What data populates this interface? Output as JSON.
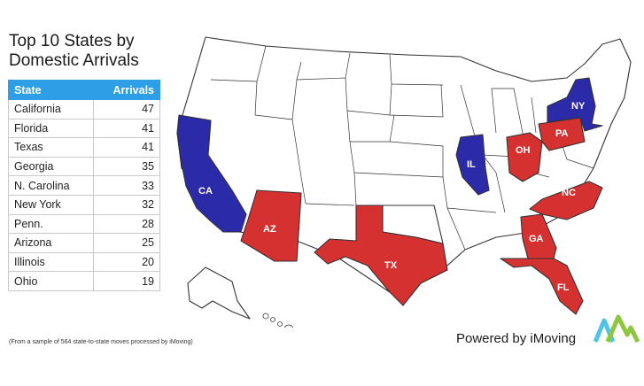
{
  "title": "Top 10 States by Domestic Arrivals",
  "table": {
    "headers": [
      "State",
      "Arrivals"
    ],
    "rows": [
      [
        "California",
        47
      ],
      [
        "Florida",
        41
      ],
      [
        "Texas",
        41
      ],
      [
        "Georgia",
        35
      ],
      [
        "N. Carolina",
        33
      ],
      [
        "New York",
        32
      ],
      [
        "Penn.",
        28
      ],
      [
        "Arizona",
        25
      ],
      [
        "Illinois",
        20
      ],
      [
        "Ohio",
        19
      ]
    ]
  },
  "map_labels": {
    "ca": "CA",
    "az": "AZ",
    "tx": "TX",
    "fl": "FL",
    "ga": "GA",
    "nc": "NC",
    "oh": "OH",
    "pa": "PA",
    "ny": "NY",
    "il": "IL"
  },
  "colors": {
    "highlight_red": "#d63131",
    "highlight_blue": "#2b2aa8",
    "table_header": "#2e9ee6",
    "default_state": "#ffffff"
  },
  "footnote": "(From a sample of 564 state-to-state moves processed by iMoving)",
  "powered_by": "Powered by iMoving",
  "logo_icon": "imoving-logo-icon"
}
